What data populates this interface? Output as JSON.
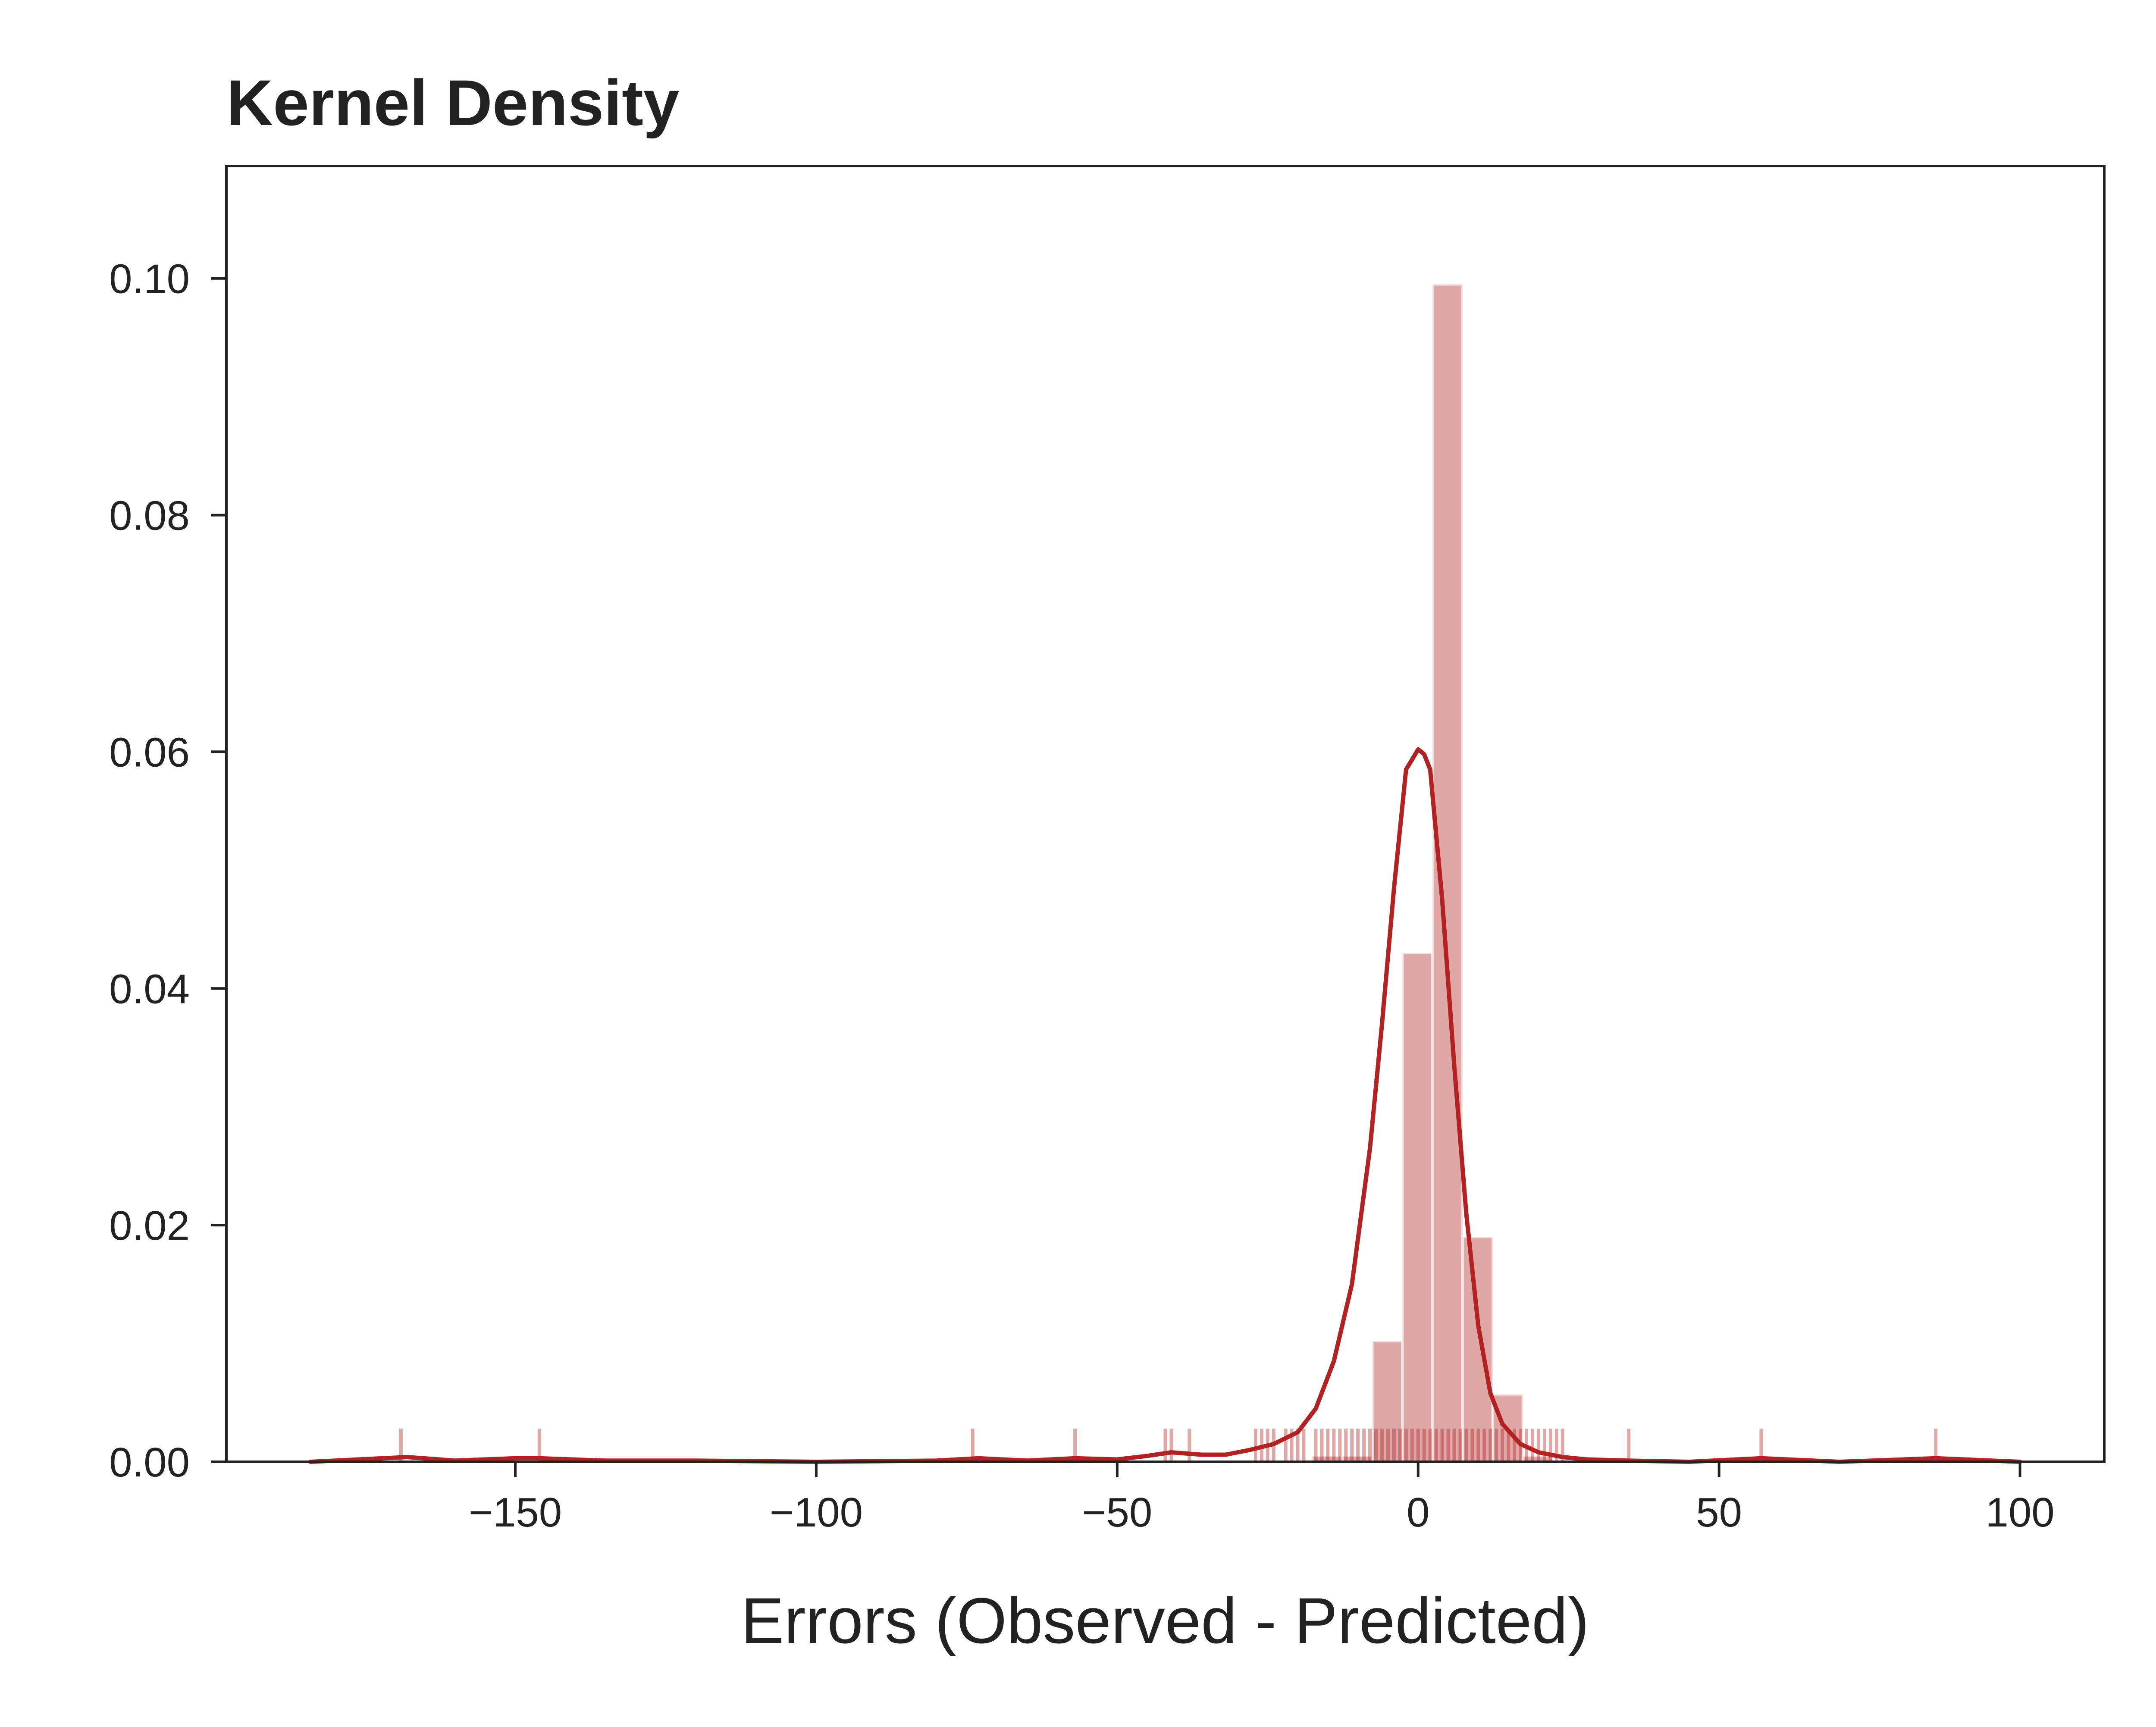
{
  "chart_data": {
    "type": "histogram",
    "title": "Kernel Density",
    "xlabel": "Errors (Observed - Predicted)",
    "ylabel": "",
    "xlim": [
      -198,
      114
    ],
    "ylim": [
      0,
      0.1095
    ],
    "x_ticks": [
      {
        "value": -150,
        "label": "−150"
      },
      {
        "value": -100,
        "label": "−100"
      },
      {
        "value": -50,
        "label": "−50"
      },
      {
        "value": 0,
        "label": "0"
      },
      {
        "value": 50,
        "label": "50"
      },
      {
        "value": 100,
        "label": "100"
      }
    ],
    "y_ticks": [
      {
        "value": 0.0,
        "label": "0.00"
      },
      {
        "value": 0.02,
        "label": "0.02"
      },
      {
        "value": 0.04,
        "label": "0.04"
      },
      {
        "value": 0.06,
        "label": "0.06"
      },
      {
        "value": 0.08,
        "label": "0.08"
      },
      {
        "value": 0.1,
        "label": "0.10"
      }
    ],
    "grid": false,
    "histogram": {
      "bin_edges": [
        -17.6,
        -12.6,
        -7.6,
        -2.6,
        2.4,
        7.4,
        12.4,
        17.4,
        22.4
      ],
      "density": [
        0.0005,
        0.0005,
        0.0102,
        0.043,
        0.0995,
        0.019,
        0.0057,
        0.0005
      ],
      "color": "#b22222",
      "opacity": 0.4
    },
    "kde": {
      "color": "#b22222",
      "x": [
        -184,
        -168,
        -160,
        -150,
        -146,
        -135,
        -120,
        -100,
        -80,
        -73,
        -65,
        -57,
        -50,
        -45,
        -41,
        -36,
        -32,
        -28,
        -24,
        -20,
        -17,
        -14,
        -11,
        -8,
        -6,
        -4,
        -2,
        0,
        1,
        2,
        4,
        6,
        8,
        10,
        12,
        14,
        17,
        20,
        24,
        28,
        35,
        45,
        57,
        70,
        86,
        100
      ],
      "y": [
        0.0,
        0.0004,
        0.0001,
        0.0003,
        0.0003,
        0.0001,
        0.0001,
        0.0,
        0.0001,
        0.0003,
        0.0001,
        0.0003,
        0.0002,
        0.0005,
        0.0008,
        0.0006,
        0.0006,
        0.001,
        0.0015,
        0.0025,
        0.0045,
        0.0085,
        0.015,
        0.0265,
        0.037,
        0.0485,
        0.0585,
        0.0602,
        0.0598,
        0.0585,
        0.0475,
        0.0335,
        0.021,
        0.0115,
        0.0058,
        0.0032,
        0.0015,
        0.0008,
        0.0004,
        0.0002,
        0.0001,
        0.0,
        0.0003,
        0.0,
        0.0003,
        0.0
      ]
    },
    "rug": {
      "color": "#b22222",
      "x": [
        -169,
        -146,
        -74,
        -57,
        -42,
        -41,
        -38,
        -27,
        -26,
        -25,
        -24,
        -22,
        -21,
        -20,
        -19,
        -17,
        -16,
        -15,
        -14,
        -13,
        -12,
        -11,
        -10,
        -9,
        -8,
        -7,
        -6,
        -5,
        -4,
        -3,
        -2,
        -1,
        0,
        1,
        2,
        3,
        4,
        5,
        6,
        7,
        8,
        9,
        10,
        11,
        12,
        13,
        14,
        15,
        16,
        17,
        18,
        19,
        20,
        21,
        22,
        23,
        24,
        35,
        57,
        86
      ]
    }
  }
}
